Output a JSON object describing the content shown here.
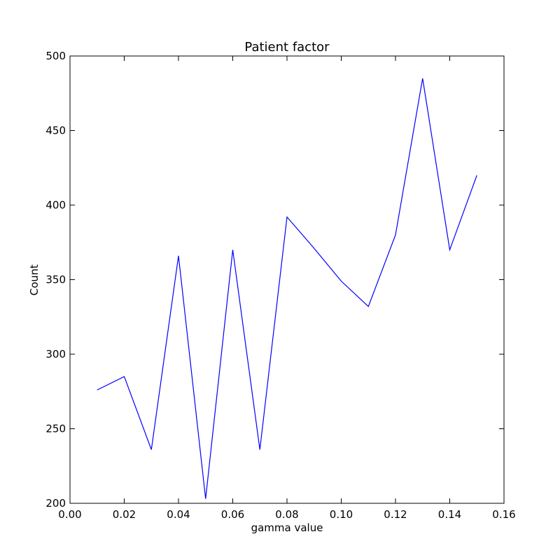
{
  "chart_data": {
    "type": "line",
    "title": "Patient factor",
    "xlabel": "gamma value",
    "ylabel": "Count",
    "xlim": [
      0.0,
      0.16
    ],
    "ylim": [
      200,
      500
    ],
    "xticks": [
      "0.00",
      "0.02",
      "0.04",
      "0.06",
      "0.08",
      "0.10",
      "0.12",
      "0.14",
      "0.16"
    ],
    "yticks": [
      "200",
      "250",
      "300",
      "350",
      "400",
      "450",
      "500"
    ],
    "grid": false,
    "legend": false,
    "series": [
      {
        "color": "#0000ff",
        "x": [
          0.01,
          0.02,
          0.03,
          0.04,
          0.05,
          0.06,
          0.07,
          0.08,
          0.09,
          0.1,
          0.11,
          0.12,
          0.13,
          0.14,
          0.15
        ],
        "y": [
          276,
          285,
          236,
          366,
          203,
          370,
          236,
          392,
          371,
          349,
          332,
          380,
          485,
          370,
          420
        ]
      }
    ]
  }
}
